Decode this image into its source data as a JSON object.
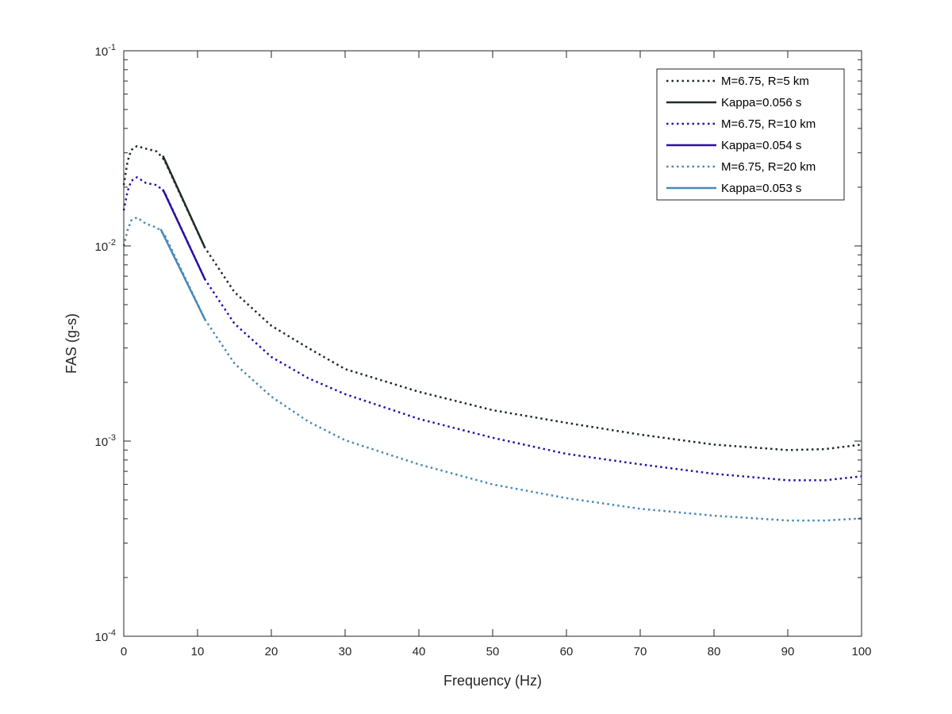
{
  "chart_data": {
    "type": "line",
    "title": "",
    "xlabel": "Frequency (Hz)",
    "ylabel": "FAS (g-s)",
    "xlim": [
      0,
      100
    ],
    "ylim": [
      0.0001,
      0.1
    ],
    "yscale": "log",
    "xticks": [
      "0",
      "10",
      "20",
      "30",
      "40",
      "50",
      "60",
      "70",
      "80",
      "90",
      "100"
    ],
    "yticks": [
      {
        "base": "10",
        "exp": "-4"
      },
      {
        "base": "10",
        "exp": "-3"
      },
      {
        "base": "10",
        "exp": "-2"
      },
      {
        "base": "10",
        "exp": "-1"
      }
    ],
    "legend_position": "top-right",
    "series": [
      {
        "name": "M=6.75, R=5 km",
        "style": "dotted",
        "color": "#1f2d24",
        "x": [
          0,
          0.5,
          1,
          1.8,
          3,
          4.5,
          5.5,
          11,
          15,
          20,
          25,
          30,
          40,
          50,
          60,
          70,
          80,
          90,
          95,
          100
        ],
        "y": [
          0.0205,
          0.027,
          0.031,
          0.0325,
          0.0315,
          0.0305,
          0.0275,
          0.0098,
          0.0058,
          0.0039,
          0.003,
          0.00234,
          0.00179,
          0.00144,
          0.00124,
          0.00108,
          0.00096,
          0.0009,
          0.00091,
          0.00096
        ]
      },
      {
        "name": "Kappa=0.056 s",
        "style": "solid",
        "color": "#1f2d24",
        "x": [
          5.3,
          11
        ],
        "y": [
          0.029,
          0.0098
        ]
      },
      {
        "name": "M=6.75, R=10 km",
        "style": "dotted",
        "color": "#2c0fa8",
        "x": [
          0,
          0.5,
          1,
          1.8,
          3,
          4.5,
          5.5,
          11,
          15,
          20,
          25,
          30,
          40,
          50,
          60,
          70,
          80,
          90,
          95,
          100
        ],
        "y": [
          0.0152,
          0.019,
          0.0215,
          0.0225,
          0.021,
          0.0205,
          0.0189,
          0.00675,
          0.004,
          0.0027,
          0.0021,
          0.00174,
          0.0013,
          0.00104,
          0.00086,
          0.00076,
          0.00068,
          0.00063,
          0.00063,
          0.00066
        ]
      },
      {
        "name": "Kappa=0.054 s",
        "style": "solid",
        "color": "#2c0fa8",
        "x": [
          5.3,
          11
        ],
        "y": [
          0.0195,
          0.00675
        ]
      },
      {
        "name": "M=6.75, R=20 km",
        "style": "dotted",
        "color": "#4a8ab8",
        "x": [
          0,
          0.5,
          1,
          1.8,
          3,
          4.5,
          5.5,
          11,
          15,
          20,
          25,
          30,
          40,
          50,
          60,
          70,
          80,
          90,
          95,
          100
        ],
        "y": [
          0.01,
          0.012,
          0.0135,
          0.014,
          0.013,
          0.0124,
          0.0115,
          0.0042,
          0.0025,
          0.00169,
          0.00126,
          0.00101,
          0.00076,
          0.0006,
          0.00051,
          0.00045,
          0.000415,
          0.000392,
          0.000392,
          0.000402
        ]
      },
      {
        "name": "Kappa=0.053 s",
        "style": "solid",
        "color": "#4a8ab8",
        "x": [
          5.0,
          11
        ],
        "y": [
          0.0122,
          0.0042
        ]
      }
    ]
  }
}
